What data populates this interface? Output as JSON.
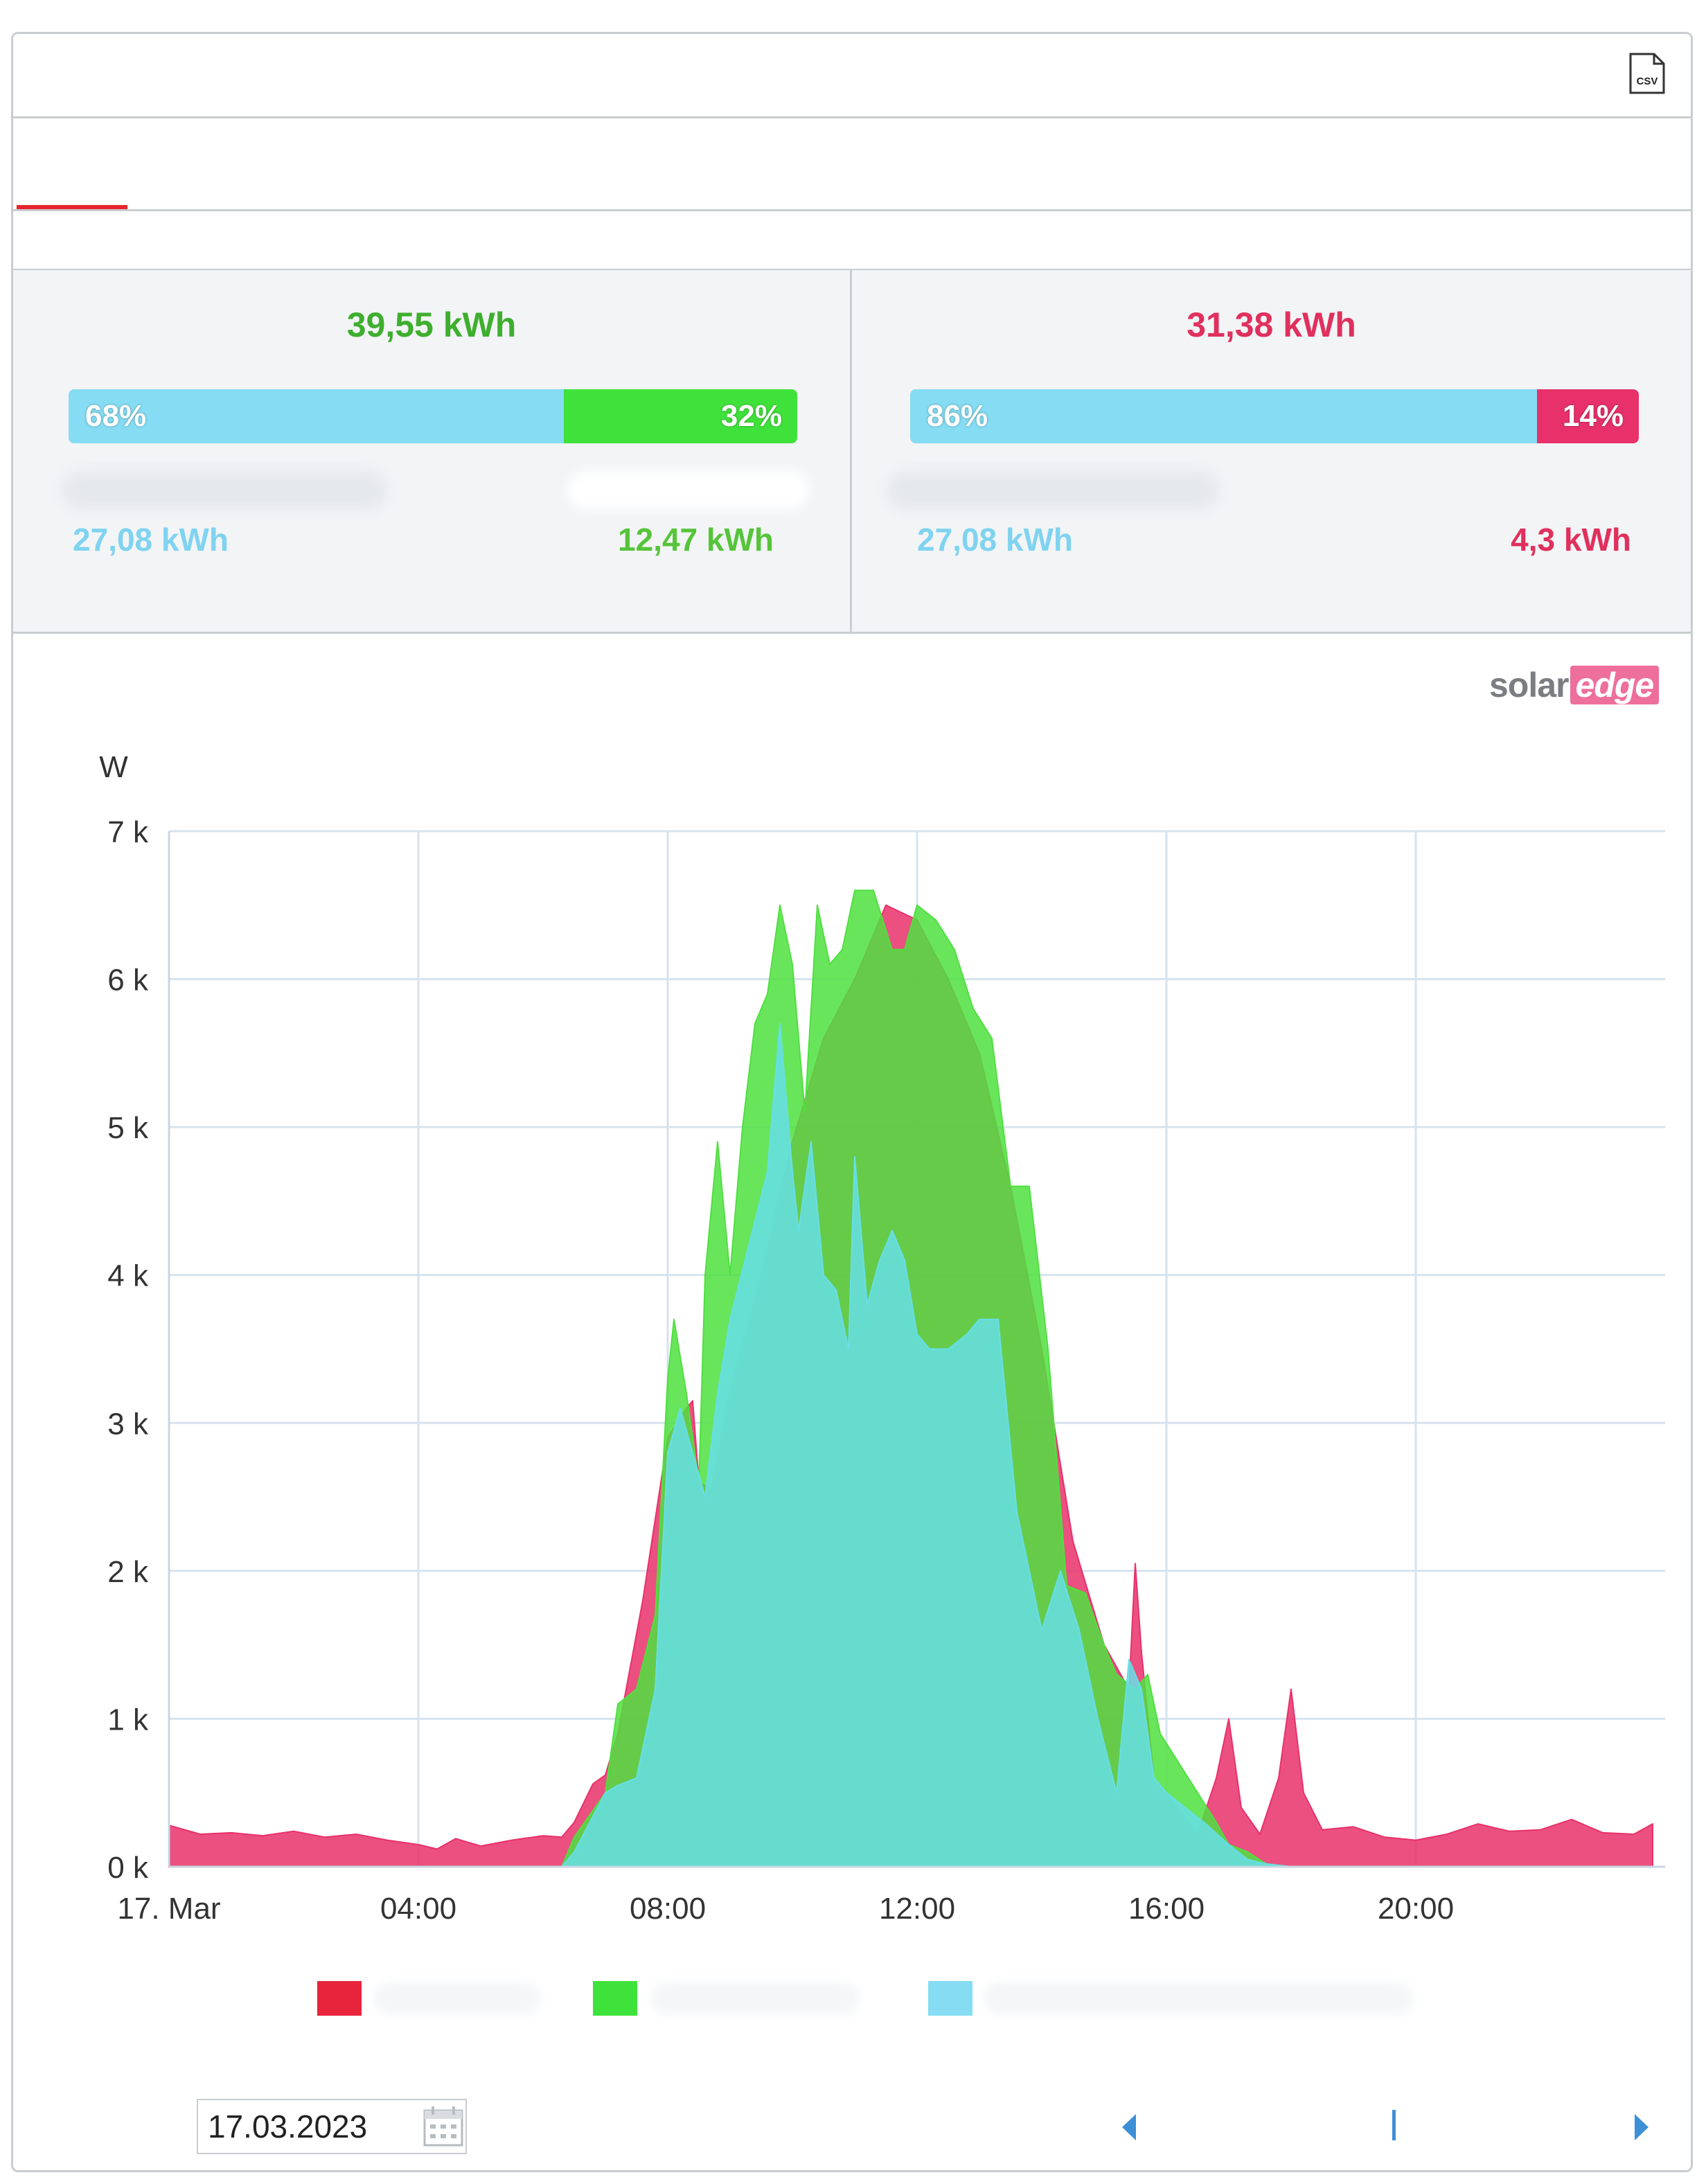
{
  "toolbar": {
    "csv_icon": "csv-file-icon",
    "csv_label": "CSV"
  },
  "colors": {
    "consumption": "#e8316a",
    "production": "#4fe040",
    "self_consumption": "#66dfe6",
    "from_grid_bar": "#e8316a",
    "self_consumption_bar": "#85dcf3",
    "export_bar": "#3fe23a"
  },
  "production_panel": {
    "total": "39,55 kWh",
    "self_consumption_percent": "68%",
    "export_percent": "32%",
    "self_consumption_fraction": 0.68,
    "self_consumption_value": "27,08 kWh",
    "export_value": "12,47 kWh"
  },
  "consumption_panel": {
    "total": "31,38 kWh",
    "self_consumption_percent": "86%",
    "grid_percent": "14%",
    "self_consumption_fraction": 0.86,
    "self_consumption_value": "27,08 kWh",
    "grid_value": "4,3 kWh"
  },
  "brand": {
    "logo_part1": "solar",
    "logo_part2": "edge"
  },
  "chart_data": {
    "type": "area",
    "ylabel": "W",
    "xlim": [
      0,
      24
    ],
    "ylim": [
      0,
      7000
    ],
    "y_ticks": [
      0,
      1000,
      2000,
      3000,
      4000,
      5000,
      6000,
      7000
    ],
    "y_tick_labels": [
      "0 k",
      "1 k",
      "2 k",
      "3 k",
      "4 k",
      "5 k",
      "6 k",
      "7 k"
    ],
    "x_ticks": [
      0,
      4,
      8,
      12,
      16,
      20
    ],
    "x_tick_labels": [
      "17. Mar",
      "04:00",
      "08:00",
      "12:00",
      "16:00",
      "20:00"
    ],
    "grid": true,
    "legend_position": "bottom",
    "series": [
      {
        "color": "#e8316a",
        "x": [
          0,
          0.5,
          1,
          1.5,
          2,
          2.5,
          3,
          3.5,
          4,
          4.3,
          4.6,
          5,
          5.5,
          6,
          6.3,
          6.5,
          6.8,
          7.0,
          7.2,
          7.6,
          8.0,
          8.3,
          8.4,
          8.5,
          8.7,
          9.0,
          9.5,
          10.0,
          10.5,
          11.0,
          11.5,
          12.0,
          12.5,
          13.0,
          13.5,
          14.0,
          14.5,
          15.0,
          15.4,
          15.5,
          15.6,
          15.8,
          16.0,
          16.5,
          16.8,
          17.0,
          17.2,
          17.5,
          17.8,
          18.0,
          18.2,
          18.5,
          19.0,
          19.5,
          20.0,
          20.5,
          21.0,
          21.5,
          22.0,
          22.5,
          23.0,
          23.5,
          23.8
        ],
        "y": [
          280,
          220,
          230,
          210,
          240,
          200,
          220,
          180,
          150,
          120,
          190,
          140,
          180,
          210,
          200,
          300,
          560,
          620,
          900,
          1800,
          2900,
          3100,
          3150,
          2600,
          2550,
          3200,
          4000,
          4900,
          5600,
          6000,
          6500,
          6400,
          6000,
          5500,
          4600,
          3500,
          2200,
          1500,
          1200,
          2050,
          1450,
          600,
          500,
          220,
          600,
          1000,
          400,
          220,
          600,
          1200,
          500,
          250,
          270,
          200,
          180,
          220,
          290,
          240,
          250,
          320,
          230,
          220,
          290
        ]
      },
      {
        "color": "#4fe040",
        "x": [
          6.3,
          6.5,
          7.0,
          7.2,
          7.5,
          7.8,
          8.0,
          8.1,
          8.3,
          8.5,
          8.6,
          8.8,
          9.0,
          9.2,
          9.4,
          9.6,
          9.8,
          10.0,
          10.2,
          10.4,
          10.6,
          10.8,
          11.0,
          11.3,
          11.6,
          11.8,
          12.0,
          12.3,
          12.6,
          12.9,
          13.2,
          13.5,
          13.8,
          14.1,
          14.4,
          14.7,
          15.0,
          15.2,
          15.5,
          15.7,
          15.9,
          16.2,
          16.5,
          16.8,
          17.0,
          17.3,
          17.6,
          18.0
        ],
        "y": [
          0,
          200,
          500,
          1100,
          1200,
          1700,
          3300,
          3700,
          3200,
          2600,
          4000,
          4900,
          4000,
          5000,
          5700,
          5900,
          6500,
          6100,
          5100,
          6500,
          6100,
          6200,
          6600,
          6600,
          6200,
          6200,
          6500,
          6400,
          6200,
          5800,
          5600,
          4600,
          4600,
          3500,
          1900,
          1850,
          1500,
          1300,
          1200,
          1300,
          900,
          700,
          500,
          300,
          150,
          100,
          20,
          0
        ]
      },
      {
        "color": "#66dfe6",
        "x": [
          6.3,
          6.5,
          7.0,
          7.2,
          7.5,
          7.8,
          8.0,
          8.2,
          8.4,
          8.6,
          8.8,
          9.0,
          9.3,
          9.6,
          9.8,
          10.0,
          10.1,
          10.3,
          10.5,
          10.7,
          10.9,
          11.0,
          11.2,
          11.4,
          11.6,
          11.8,
          12.0,
          12.2,
          12.5,
          12.8,
          13.0,
          13.3,
          13.6,
          14.0,
          14.3,
          14.6,
          14.9,
          15.2,
          15.4,
          15.6,
          15.8,
          16.0,
          16.3,
          16.6,
          17.0,
          17.3,
          17.6,
          18.0
        ],
        "y": [
          0,
          100,
          500,
          550,
          600,
          1200,
          2800,
          3100,
          2800,
          2500,
          3200,
          3700,
          4200,
          4700,
          5700,
          4700,
          4300,
          4900,
          4000,
          3900,
          3500,
          4800,
          3800,
          4100,
          4300,
          4100,
          3600,
          3500,
          3500,
          3600,
          3700,
          3700,
          2400,
          1600,
          2000,
          1600,
          1000,
          500,
          1400,
          1200,
          600,
          500,
          400,
          300,
          150,
          50,
          20,
          0
        ]
      }
    ]
  },
  "footer": {
    "date_value": "17.03.2023",
    "calendar_icon": "calendar-icon",
    "prev_icon": "chevron-left-icon",
    "next_icon": "chevron-right-icon"
  }
}
